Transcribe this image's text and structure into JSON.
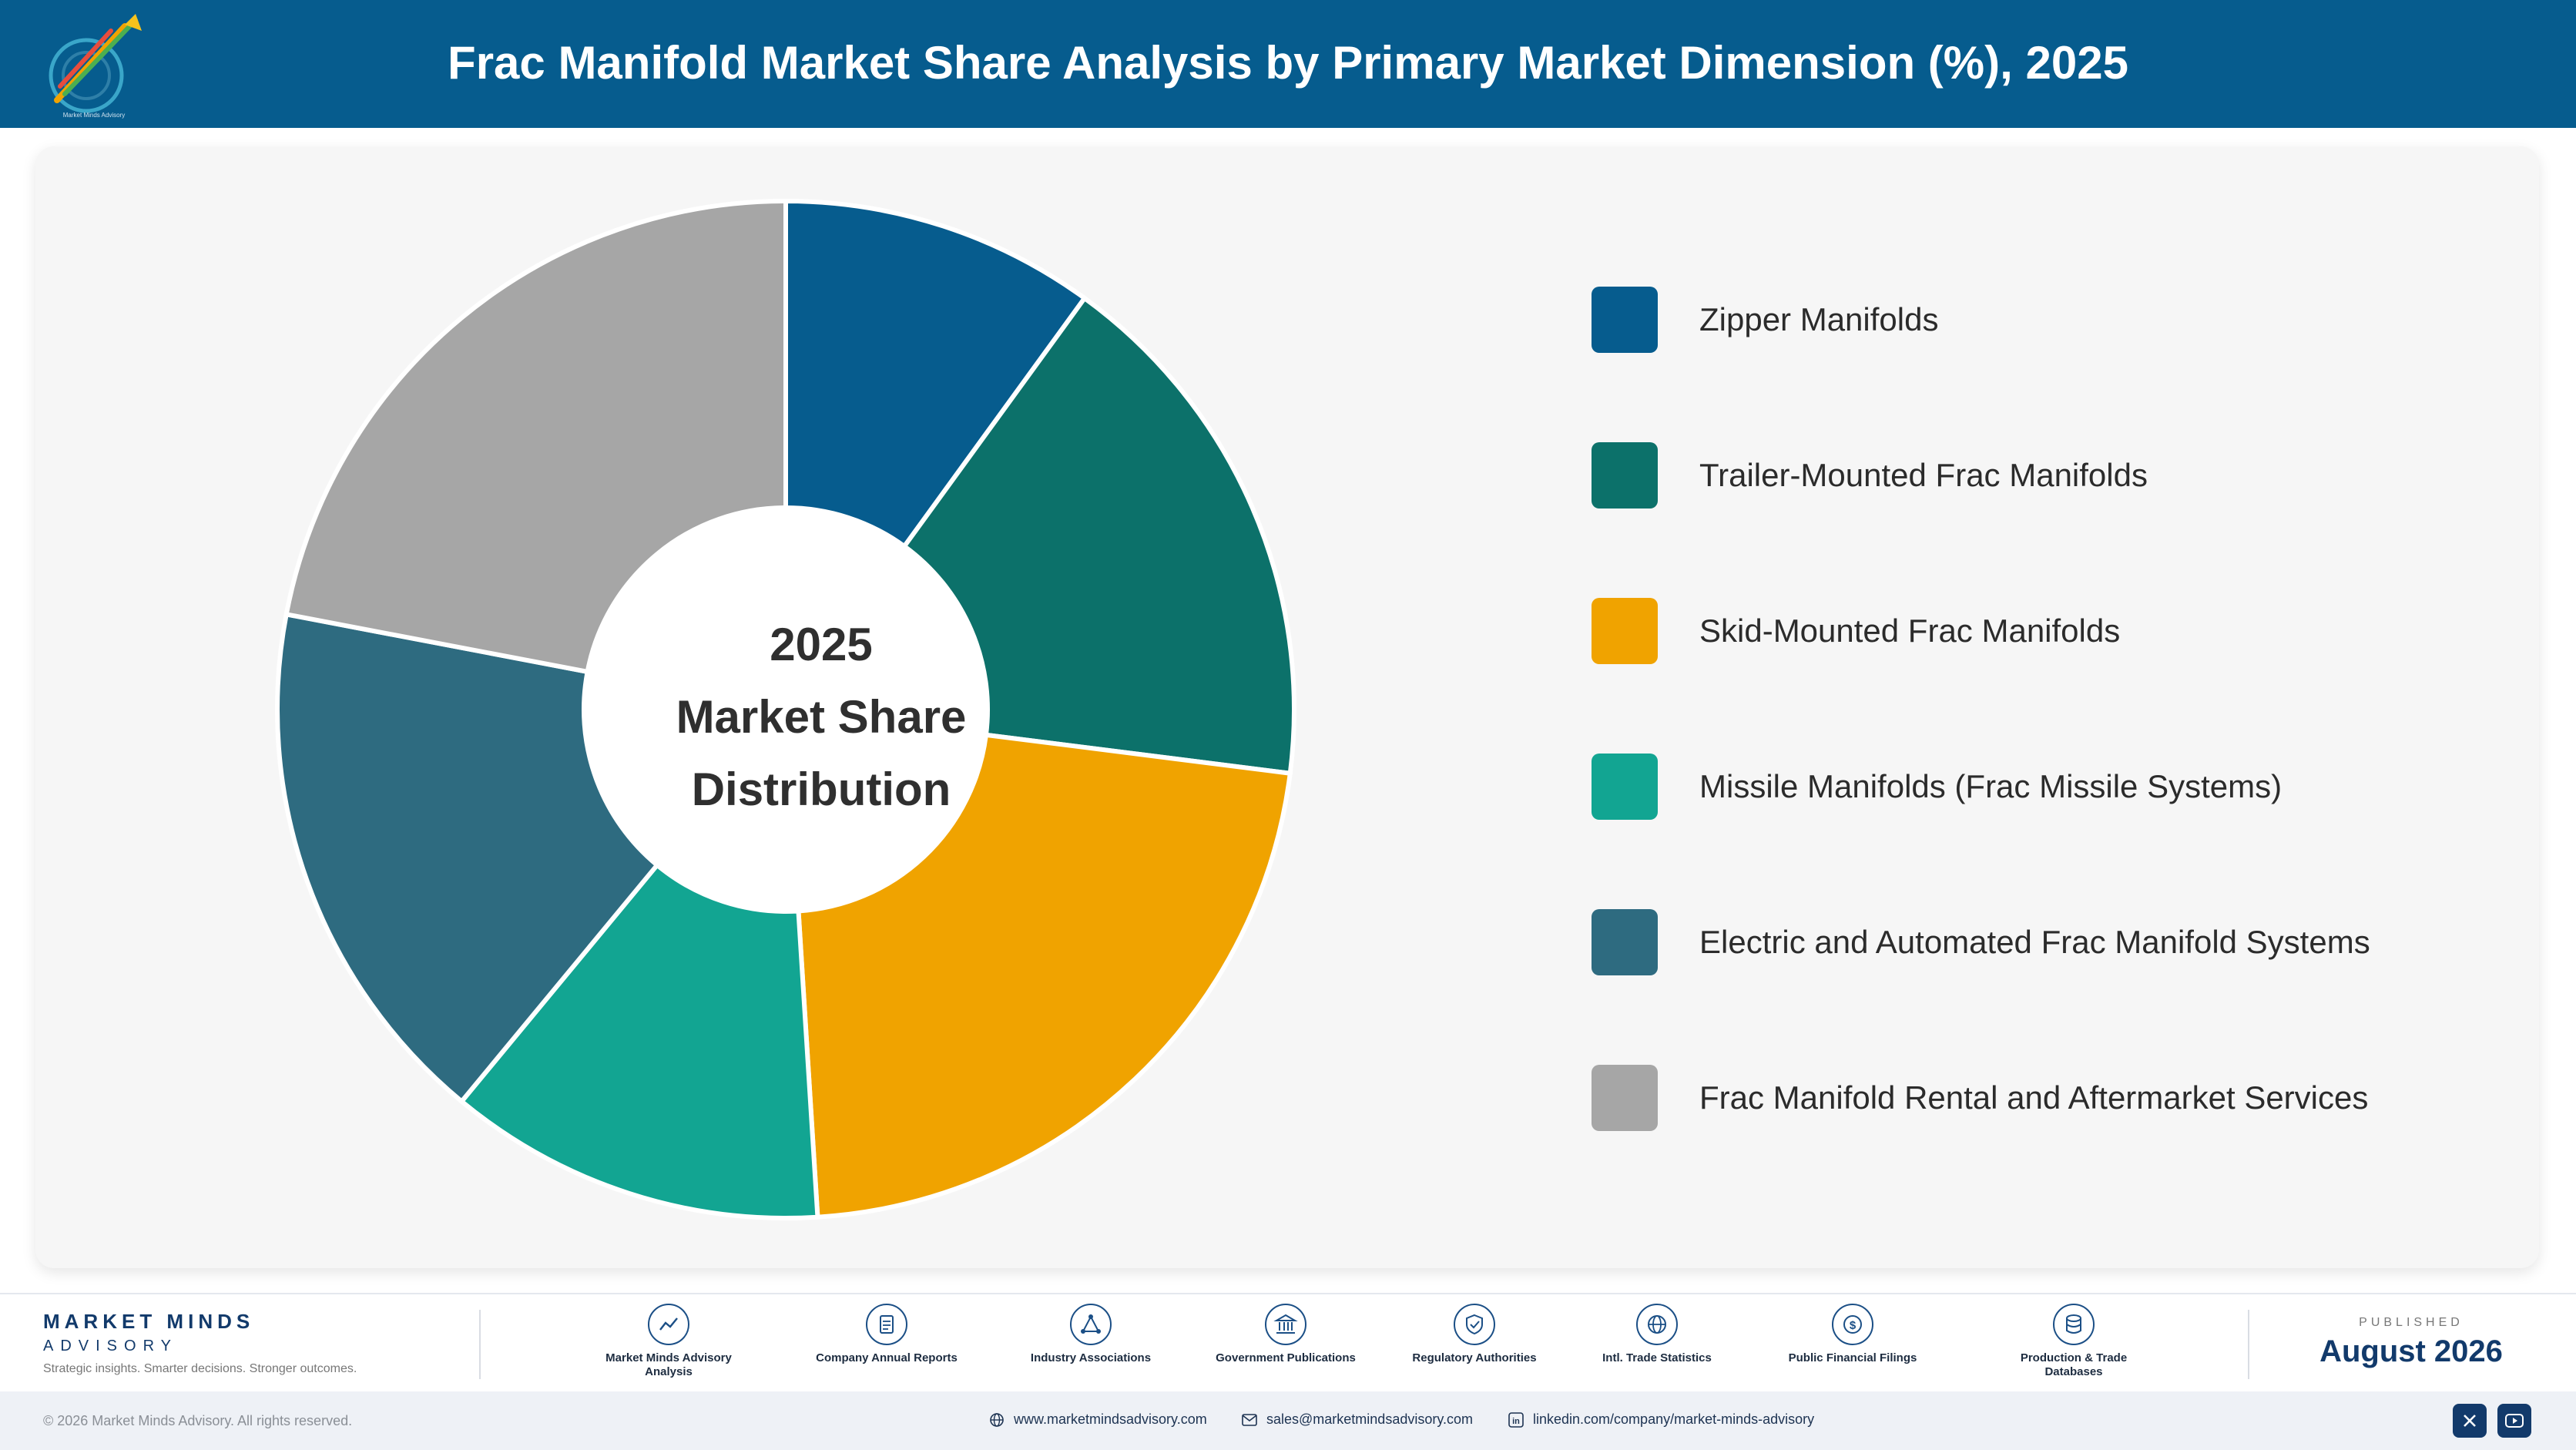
{
  "header": {
    "title": "Frac Manifold Market Share Analysis by Primary Market Dimension (%), 2025",
    "logo_icon": "market-minds-logo-icon",
    "background_color": "#065c8e"
  },
  "chart_data": {
    "type": "pie",
    "style": "donut",
    "center_label": [
      "2025",
      "Market Share",
      "Distribution"
    ],
    "legend_position": "right",
    "series": [
      {
        "name": "Zipper Manifolds",
        "value": 10,
        "color": "#065c8e"
      },
      {
        "name": "Trailer-Mounted Frac Manifolds",
        "value": 17,
        "color": "#0c716a"
      },
      {
        "name": "Skid-Mounted Frac Manifolds",
        "value": 22,
        "color": "#f0a300"
      },
      {
        "name": "Missile Manifolds (Frac Missile Systems)",
        "value": 12,
        "color": "#12a592"
      },
      {
        "name": "Electric and Automated Frac Manifold Systems",
        "value": 17,
        "color": "#2e6b80"
      },
      {
        "name": "Frac Manifold Rental and Aftermarket Services",
        "value": 22,
        "color": "#a6a6a6"
      }
    ]
  },
  "footer": {
    "brand_name": "MARKET MINDS",
    "brand_sub": "ADVISORY",
    "brand_tagline": "Strategic insights. Smarter decisions. Stronger outcomes.",
    "sources": [
      {
        "label": "Market Minds Advisory Analysis",
        "icon": "trend-chart-icon"
      },
      {
        "label": "Company Annual Reports",
        "icon": "document-icon"
      },
      {
        "label": "Industry Associations",
        "icon": "network-icon"
      },
      {
        "label": "Government Publications",
        "icon": "government-building-icon"
      },
      {
        "label": "Regulatory Authorities",
        "icon": "shield-check-icon"
      },
      {
        "label": "Intl. Trade Statistics",
        "icon": "globe-icon"
      },
      {
        "label": "Public Financial Filings",
        "icon": "dollar-coin-icon"
      },
      {
        "label": "Production & Trade Databases",
        "icon": "database-icon"
      }
    ],
    "published_label": "PUBLISHED",
    "published_date": "August 2026",
    "copyright": "© 2026 Market Minds Advisory. All rights reserved.",
    "website": "www.marketmindsadvisory.com",
    "email": "sales@marketmindsadvisory.com",
    "linkedin": "linkedin.com/company/market-minds-advisory",
    "social_icons": [
      "x-icon",
      "youtube-icon"
    ]
  }
}
